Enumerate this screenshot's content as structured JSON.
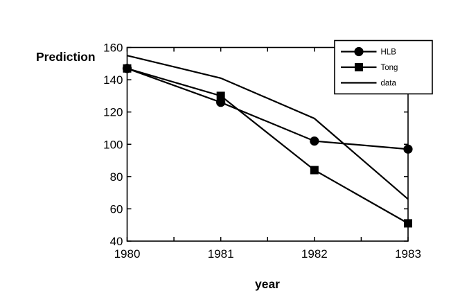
{
  "figure": {
    "background": "#ffffff",
    "foreground": "#000000"
  },
  "chart_data": {
    "type": "line",
    "title": "",
    "xlabel": "year",
    "ylabel": "Prediction",
    "x": [
      1980,
      1981,
      1982,
      1983
    ],
    "xticks": [
      "1980",
      "1981",
      "1982",
      "1983"
    ],
    "yticks": [
      40,
      60,
      80,
      100,
      120,
      140,
      160
    ],
    "xlim": [
      1980,
      1983
    ],
    "ylim": [
      40,
      160
    ],
    "grid": false,
    "legend_position": "top-right",
    "legend_entries": [
      "HLB",
      "Tong",
      "data"
    ],
    "series": [
      {
        "name": "HLB",
        "marker": "circle",
        "color": "#000000",
        "values": [
          147,
          126,
          102,
          97
        ]
      },
      {
        "name": "Tong",
        "marker": "square",
        "color": "#000000",
        "values": [
          147,
          130,
          84,
          51
        ]
      },
      {
        "name": "data",
        "marker": "none",
        "color": "#000000",
        "values": [
          155,
          141,
          116,
          66
        ]
      }
    ]
  }
}
